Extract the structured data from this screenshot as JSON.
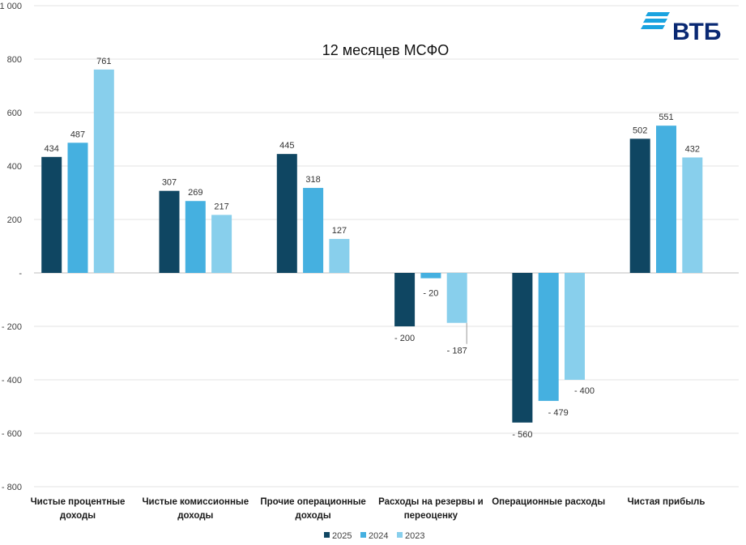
{
  "brand": {
    "name": "ВТБ",
    "logo_color": "#0a2973",
    "stripe_color": "#1aa3e0"
  },
  "chart_data": {
    "type": "bar",
    "title": "12 месяцев МСФО",
    "xlabel": "",
    "ylabel": "",
    "ylim": [
      -800,
      1000
    ],
    "yticks": [
      1000,
      800,
      600,
      400,
      200,
      0,
      -200,
      -400,
      -600,
      -800
    ],
    "ytick_labels": [
      "1 000",
      "800",
      "600",
      "400",
      "200",
      "-",
      "- 200",
      "- 400",
      "- 600",
      "- 800"
    ],
    "grid": true,
    "legend_position": "bottom",
    "categories": [
      [
        "Чистые процентные",
        "доходы"
      ],
      [
        "Чистые комиссионные",
        "доходы"
      ],
      [
        "Прочие операционные",
        "доходы"
      ],
      [
        "Расходы на резервы и",
        "переоценку"
      ],
      [
        "Операционные расходы"
      ],
      [
        "Чистая прибыль"
      ]
    ],
    "series": [
      {
        "name": "2025",
        "color": "#0f4662",
        "values": [
          434,
          307,
          445,
          -200,
          -560,
          502
        ],
        "labels": [
          "434",
          "307",
          "445",
          "- 200",
          "- 560",
          "502"
        ]
      },
      {
        "name": "2024",
        "color": "#45b0e0",
        "values": [
          487,
          269,
          318,
          -20,
          -479,
          551
        ],
        "labels": [
          "487",
          "269",
          "318",
          "- 20",
          "- 479",
          "551"
        ]
      },
      {
        "name": "2023",
        "color": "#88cfec",
        "values": [
          761,
          217,
          127,
          -187,
          -400,
          432
        ],
        "labels": [
          "761",
          "217",
          "127",
          "- 187",
          "- 400",
          "432"
        ]
      }
    ]
  }
}
